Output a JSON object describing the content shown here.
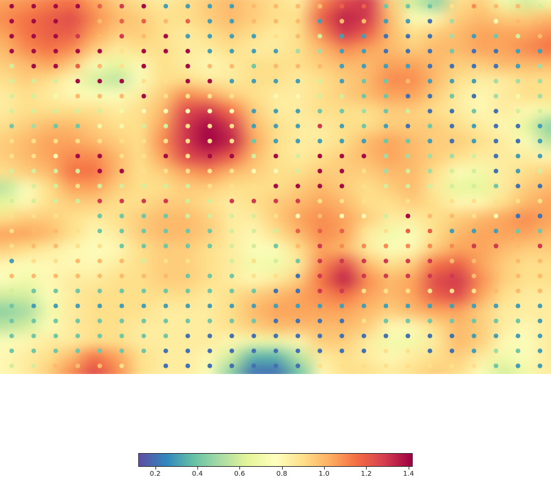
{
  "chart_data": {
    "type": "heatmap",
    "title": "",
    "xlabel": "",
    "ylabel": "",
    "colormap": "Spectral_r",
    "value_range": [
      0.12,
      1.42
    ],
    "grid": {
      "columns": 25,
      "rows": 25
    },
    "surface_value_rows": [
      [
        1.05,
        1.08,
        1.12,
        1.15,
        1.05,
        0.95,
        0.9,
        0.85,
        0.9,
        0.95,
        1.0,
        0.95,
        0.9,
        0.85,
        1.1,
        1.25,
        1.3,
        0.95,
        0.6,
        0.45,
        0.9,
        0.95,
        0.7,
        0.6,
        0.7
      ],
      [
        1.1,
        1.15,
        1.2,
        1.25,
        1.1,
        1.0,
        0.95,
        0.9,
        0.9,
        0.95,
        1.0,
        0.95,
        0.9,
        0.9,
        1.2,
        1.35,
        1.3,
        1.0,
        0.75,
        0.8,
        0.95,
        1.0,
        0.95,
        0.95,
        1.0
      ],
      [
        1.05,
        1.15,
        1.2,
        1.2,
        1.05,
        0.95,
        0.95,
        0.9,
        0.85,
        0.9,
        0.95,
        0.9,
        0.85,
        0.9,
        1.1,
        1.3,
        1.2,
        1.0,
        0.9,
        0.95,
        1.0,
        1.05,
        1.05,
        1.05,
        1.1
      ],
      [
        1.0,
        1.1,
        1.15,
        1.1,
        0.95,
        0.85,
        0.9,
        0.9,
        0.85,
        0.85,
        0.9,
        0.85,
        0.85,
        0.9,
        1.0,
        1.1,
        1.05,
        1.0,
        0.95,
        1.0,
        1.0,
        1.05,
        1.05,
        1.1,
        1.15
      ],
      [
        0.95,
        1.0,
        1.05,
        0.95,
        0.75,
        0.65,
        0.8,
        0.9,
        0.85,
        0.8,
        0.85,
        0.9,
        0.9,
        0.9,
        0.95,
        1.0,
        1.0,
        1.05,
        1.05,
        1.0,
        0.95,
        0.95,
        1.0,
        1.0,
        1.0
      ],
      [
        0.9,
        0.95,
        0.9,
        0.8,
        0.6,
        0.55,
        0.75,
        0.9,
        0.9,
        0.85,
        0.85,
        0.9,
        0.9,
        0.85,
        0.9,
        0.95,
        1.0,
        1.1,
        1.1,
        1.0,
        0.9,
        0.85,
        0.85,
        0.9,
        0.9
      ],
      [
        0.85,
        0.9,
        0.85,
        0.8,
        0.75,
        0.75,
        0.85,
        0.95,
        1.1,
        1.05,
        0.95,
        0.9,
        0.85,
        0.85,
        0.9,
        0.95,
        1.0,
        1.05,
        1.05,
        0.95,
        0.85,
        0.8,
        0.85,
        0.9,
        0.9
      ],
      [
        0.85,
        0.9,
        0.9,
        0.9,
        0.9,
        0.85,
        0.9,
        1.0,
        1.25,
        1.3,
        1.15,
        0.95,
        0.85,
        0.85,
        0.9,
        0.9,
        0.9,
        0.95,
        0.95,
        0.9,
        0.85,
        0.8,
        0.85,
        0.8,
        0.7
      ],
      [
        0.9,
        0.95,
        1.0,
        1.0,
        0.95,
        0.9,
        0.9,
        1.05,
        1.3,
        1.4,
        1.3,
        1.0,
        0.9,
        0.85,
        0.85,
        0.9,
        0.9,
        0.95,
        0.95,
        0.95,
        0.9,
        0.85,
        0.8,
        0.65,
        0.45
      ],
      [
        0.95,
        1.0,
        1.05,
        1.05,
        1.0,
        0.95,
        0.9,
        1.1,
        1.3,
        1.42,
        1.35,
        1.05,
        0.9,
        0.85,
        0.85,
        0.9,
        1.0,
        1.05,
        1.0,
        0.95,
        0.95,
        0.9,
        0.85,
        0.75,
        0.55
      ],
      [
        0.95,
        1.0,
        1.05,
        1.1,
        1.1,
        1.0,
        0.9,
        1.05,
        1.25,
        1.3,
        1.2,
        1.0,
        0.9,
        0.85,
        0.9,
        0.95,
        1.0,
        1.05,
        1.0,
        0.95,
        0.9,
        0.85,
        0.85,
        0.85,
        0.8
      ],
      [
        0.9,
        0.95,
        1.0,
        1.15,
        1.15,
        1.0,
        0.9,
        0.95,
        1.05,
        1.1,
        1.0,
        0.95,
        0.9,
        0.9,
        0.95,
        0.95,
        0.95,
        1.0,
        1.0,
        0.9,
        0.75,
        0.7,
        0.85,
        0.9,
        0.95
      ],
      [
        0.55,
        0.75,
        0.9,
        1.05,
        1.05,
        0.95,
        0.9,
        0.9,
        0.95,
        0.95,
        0.9,
        0.9,
        0.9,
        0.95,
        1.0,
        0.95,
        0.9,
        0.95,
        1.0,
        0.85,
        0.65,
        0.65,
        0.85,
        0.95,
        1.0
      ],
      [
        0.65,
        0.8,
        0.9,
        0.95,
        0.95,
        0.9,
        0.9,
        0.95,
        0.95,
        0.9,
        0.85,
        0.9,
        0.95,
        1.0,
        1.05,
        1.0,
        0.9,
        0.9,
        0.95,
        0.9,
        0.8,
        0.8,
        0.9,
        1.0,
        1.05
      ],
      [
        0.9,
        0.95,
        0.95,
        0.9,
        0.85,
        0.9,
        0.95,
        1.0,
        1.0,
        0.95,
        0.85,
        0.85,
        0.95,
        1.05,
        1.1,
        1.05,
        0.95,
        0.85,
        0.85,
        0.9,
        0.95,
        1.0,
        1.05,
        1.1,
        1.05
      ],
      [
        1.05,
        1.05,
        1.0,
        0.9,
        0.8,
        0.85,
        0.95,
        1.0,
        1.0,
        0.95,
        0.85,
        0.8,
        0.9,
        1.0,
        1.1,
        1.05,
        0.85,
        0.7,
        0.75,
        0.9,
        1.0,
        1.05,
        1.05,
        1.05,
        1.0
      ],
      [
        0.95,
        0.9,
        0.85,
        0.8,
        0.75,
        0.8,
        0.9,
        0.95,
        0.95,
        0.9,
        0.85,
        0.75,
        0.75,
        0.9,
        1.05,
        1.0,
        0.85,
        0.75,
        0.8,
        0.95,
        1.05,
        1.05,
        1.0,
        0.95,
        0.95
      ],
      [
        0.8,
        0.75,
        0.8,
        0.8,
        0.8,
        0.85,
        0.9,
        0.95,
        0.95,
        0.9,
        0.85,
        0.7,
        0.7,
        0.85,
        1.1,
        1.25,
        1.0,
        0.9,
        0.95,
        1.15,
        1.2,
        1.05,
        0.95,
        0.9,
        0.9
      ],
      [
        0.75,
        0.7,
        0.8,
        0.85,
        0.85,
        0.9,
        0.9,
        0.95,
        0.95,
        0.9,
        0.85,
        0.8,
        0.85,
        0.95,
        1.15,
        1.35,
        1.1,
        1.0,
        1.05,
        1.25,
        1.3,
        1.1,
        0.95,
        0.9,
        0.9
      ],
      [
        0.6,
        0.6,
        0.75,
        0.85,
        0.9,
        0.9,
        0.9,
        0.9,
        0.9,
        0.85,
        0.9,
        0.95,
        1.0,
        1.05,
        1.1,
        1.15,
        1.05,
        1.0,
        1.05,
        1.2,
        1.25,
        1.05,
        0.9,
        0.85,
        0.85
      ],
      [
        0.45,
        0.5,
        0.7,
        0.85,
        0.9,
        0.9,
        0.9,
        0.85,
        0.85,
        0.85,
        0.9,
        1.0,
        1.05,
        1.05,
        1.05,
        1.05,
        1.0,
        0.95,
        1.0,
        1.05,
        1.05,
        0.95,
        0.85,
        0.85,
        0.85
      ],
      [
        0.55,
        0.6,
        0.75,
        0.85,
        0.9,
        0.9,
        0.85,
        0.85,
        0.85,
        0.85,
        0.9,
        0.95,
        1.0,
        1.0,
        1.0,
        1.0,
        0.95,
        0.8,
        0.8,
        0.9,
        1.0,
        0.95,
        0.85,
        0.8,
        0.85
      ],
      [
        0.75,
        0.8,
        0.85,
        0.85,
        0.9,
        0.9,
        0.85,
        0.85,
        0.85,
        0.85,
        0.8,
        0.7,
        0.7,
        0.8,
        0.95,
        0.95,
        0.85,
        0.7,
        0.7,
        0.85,
        1.0,
        0.95,
        0.8,
        0.75,
        0.85
      ],
      [
        0.8,
        0.85,
        0.9,
        1.0,
        1.15,
        1.05,
        0.9,
        0.85,
        0.85,
        0.8,
        0.6,
        0.35,
        0.35,
        0.55,
        0.85,
        0.9,
        0.85,
        0.8,
        0.85,
        0.9,
        0.95,
        0.85,
        0.7,
        0.75,
        0.85
      ],
      [
        0.8,
        0.85,
        0.95,
        1.1,
        1.25,
        1.1,
        0.9,
        0.85,
        0.85,
        0.75,
        0.45,
        0.2,
        0.2,
        0.4,
        0.8,
        0.9,
        0.9,
        0.85,
        0.9,
        0.95,
        0.9,
        0.75,
        0.6,
        0.7,
        0.85
      ]
    ],
    "point_value_rows": [
      [
        1.4,
        1.4,
        1.4,
        1.4,
        1.2,
        1.3,
        1.4,
        0.3,
        0.3,
        0.3,
        0.3,
        1.0,
        1.0,
        1.0,
        1.0,
        1.2,
        1.2,
        0.4,
        0.4,
        0.4,
        0.9,
        1.1,
        1.0,
        1.0,
        0.6
      ],
      [
        1.4,
        1.4,
        1.4,
        1.2,
        1.0,
        1.2,
        1.2,
        1.0,
        1.2,
        0.3,
        0.3,
        1.0,
        1.0,
        1.0,
        0.3,
        1.0,
        1.0,
        0.3,
        0.3,
        0.2,
        0.5,
        1.0,
        0.8,
        1.0,
        1.0
      ],
      [
        1.4,
        1.4,
        1.4,
        1.3,
        1.0,
        1.3,
        1.0,
        1.4,
        0.3,
        0.3,
        0.3,
        0.3,
        0.9,
        1.0,
        0.6,
        0.3,
        0.3,
        0.2,
        0.2,
        0.2,
        0.5,
        0.3,
        0.4,
        0.6,
        1.0
      ],
      [
        1.4,
        1.4,
        1.4,
        1.4,
        1.4,
        0.9,
        1.4,
        1.4,
        1.4,
        0.3,
        0.3,
        0.3,
        0.3,
        0.5,
        0.5,
        0.3,
        0.3,
        0.2,
        0.2,
        0.2,
        0.4,
        0.2,
        0.2,
        0.3,
        0.3
      ],
      [
        0.6,
        1.4,
        1.4,
        1.2,
        1.0,
        0.9,
        1.4,
        0.9,
        1.4,
        1.0,
        1.0,
        0.4,
        1.0,
        1.0,
        1.0,
        0.3,
        0.3,
        0.3,
        0.3,
        0.2,
        0.2,
        0.2,
        0.2,
        0.3,
        0.5
      ],
      [
        0.6,
        0.6,
        0.6,
        1.4,
        1.4,
        1.4,
        0.9,
        0.9,
        1.4,
        1.4,
        0.3,
        0.3,
        0.3,
        0.3,
        0.6,
        0.3,
        0.4,
        0.4,
        1.0,
        0.3,
        0.3,
        0.3,
        0.5,
        0.5,
        0.5
      ],
      [
        0.6,
        0.6,
        0.7,
        1.0,
        1.0,
        1.0,
        1.4,
        0.9,
        0.9,
        0.9,
        0.9,
        0.9,
        0.8,
        0.8,
        0.6,
        0.6,
        0.4,
        0.4,
        0.2,
        0.2,
        0.4,
        0.2,
        0.5,
        0.7,
        0.5
      ],
      [
        0.6,
        0.6,
        0.6,
        0.6,
        0.6,
        0.7,
        0.8,
        0.8,
        0.8,
        0.8,
        0.8,
        0.3,
        0.3,
        0.3,
        0.4,
        0.4,
        0.5,
        0.4,
        0.6,
        0.2,
        0.2,
        0.4,
        0.2,
        0.6,
        0.6
      ],
      [
        0.4,
        0.5,
        0.4,
        0.4,
        0.7,
        0.7,
        0.6,
        0.6,
        0.9,
        0.9,
        0.9,
        0.3,
        0.3,
        0.3,
        1.3,
        0.3,
        0.4,
        0.3,
        0.2,
        0.4,
        0.2,
        0.3,
        0.2,
        0.2,
        0.3
      ],
      [
        0.9,
        0.9,
        0.9,
        0.9,
        0.9,
        0.9,
        0.9,
        0.9,
        0.9,
        0.9,
        0.9,
        0.4,
        0.3,
        0.3,
        0.3,
        0.3,
        0.3,
        0.4,
        0.4,
        0.3,
        0.2,
        0.3,
        0.2,
        0.2,
        0.3
      ],
      [
        0.9,
        0.9,
        0.8,
        1.4,
        1.4,
        0.9,
        0.9,
        1.4,
        0.9,
        1.4,
        1.4,
        0.6,
        1.4,
        0.6,
        1.4,
        1.4,
        1.4,
        0.5,
        0.5,
        0.5,
        0.5,
        0.6,
        0.2,
        0.3,
        0.3
      ],
      [
        0.6,
        0.6,
        0.6,
        0.6,
        1.4,
        1.4,
        0.9,
        0.9,
        0.9,
        0.9,
        0.9,
        0.8,
        0.8,
        0.6,
        1.4,
        1.4,
        0.9,
        0.5,
        0.6,
        0.5,
        0.6,
        0.6,
        0.2,
        0.3,
        0.6
      ],
      [
        0.6,
        0.6,
        0.6,
        0.9,
        0.6,
        0.6,
        0.6,
        0.6,
        0.6,
        0.9,
        0.9,
        0.9,
        1.4,
        1.4,
        1.4,
        1.4,
        0.9,
        0.6,
        0.6,
        0.6,
        0.6,
        0.6,
        0.4,
        0.2,
        0.2
      ],
      [
        0.6,
        0.6,
        0.6,
        0.6,
        1.3,
        1.3,
        1.3,
        1.3,
        0.6,
        0.6,
        1.3,
        1.3,
        1.3,
        1.3,
        0.9,
        0.9,
        0.9,
        0.9,
        0.9,
        0.9,
        0.9,
        0.9,
        0.9,
        0.9,
        0.9
      ],
      [
        0.9,
        0.9,
        0.9,
        0.9,
        0.4,
        0.4,
        0.4,
        0.4,
        0.6,
        0.6,
        0.6,
        0.6,
        0.9,
        0.8,
        1.0,
        0.8,
        0.8,
        0.6,
        1.4,
        1.0,
        1.0,
        0.9,
        0.8,
        0.2,
        0.2
      ],
      [
        0.9,
        1.0,
        1.0,
        0.9,
        0.4,
        0.4,
        0.4,
        0.4,
        0.4,
        0.4,
        0.6,
        0.6,
        0.6,
        1.2,
        1.2,
        1.2,
        0.9,
        0.9,
        1.2,
        1.2,
        0.3,
        0.3,
        0.3,
        0.4,
        0.4
      ],
      [
        0.9,
        1.0,
        1.0,
        0.9,
        0.9,
        0.4,
        0.4,
        0.4,
        0.4,
        0.4,
        0.6,
        0.6,
        0.4,
        1.0,
        1.3,
        1.1,
        1.1,
        1.1,
        1.1,
        1.1,
        1.1,
        1.3,
        1.3,
        1.0,
        1.3
      ],
      [
        0.3,
        0.9,
        0.9,
        1.0,
        1.0,
        1.0,
        0.6,
        0.9,
        0.9,
        0.9,
        0.6,
        0.9,
        0.6,
        0.4,
        1.3,
        1.3,
        1.3,
        1.3,
        1.3,
        1.3,
        1.0,
        1.0,
        1.0,
        1.0,
        1.0
      ],
      [
        1.0,
        1.0,
        1.0,
        1.0,
        1.0,
        1.0,
        1.0,
        1.0,
        0.4,
        0.4,
        0.4,
        0.9,
        0.9,
        0.2,
        1.3,
        1.3,
        1.3,
        1.3,
        1.3,
        1.3,
        1.3,
        1.0,
        1.0,
        1.0,
        1.0
      ],
      [
        0.6,
        0.4,
        0.4,
        0.4,
        0.4,
        0.4,
        0.4,
        0.4,
        0.4,
        0.4,
        0.4,
        0.4,
        0.2,
        0.2,
        1.3,
        1.3,
        0.9,
        0.9,
        0.9,
        0.9,
        0.9,
        0.9,
        1.0,
        1.0,
        1.0
      ],
      [
        0.4,
        0.3,
        0.3,
        0.3,
        0.3,
        0.3,
        0.3,
        0.3,
        0.3,
        0.3,
        0.3,
        0.3,
        0.3,
        0.3,
        0.3,
        0.3,
        0.3,
        0.3,
        0.3,
        0.3,
        0.3,
        0.3,
        0.3,
        0.3,
        0.3
      ],
      [
        0.4,
        0.4,
        0.4,
        0.4,
        0.4,
        0.4,
        0.4,
        0.4,
        0.4,
        0.4,
        0.4,
        0.4,
        0.2,
        0.2,
        0.2,
        0.2,
        0.9,
        0.4,
        0.4,
        0.4,
        0.4,
        0.4,
        0.4,
        0.4,
        0.3
      ],
      [
        0.4,
        0.4,
        0.4,
        0.4,
        0.4,
        0.4,
        0.4,
        0.4,
        0.2,
        0.2,
        0.2,
        0.2,
        0.2,
        0.2,
        0.2,
        0.2,
        0.2,
        0.2,
        0.2,
        0.2,
        0.2,
        0.3,
        0.3,
        0.3,
        0.3
      ],
      [
        0.4,
        0.4,
        0.4,
        0.4,
        0.4,
        0.4,
        0.4,
        0.2,
        0.2,
        0.2,
        0.2,
        0.2,
        0.2,
        0.2,
        0.2,
        0.2,
        0.2,
        0.9,
        0.9,
        0.2,
        0.2,
        0.3,
        0.5,
        0.4,
        0.3
      ],
      [
        0.6,
        0.6,
        1.0,
        1.0,
        1.0,
        0.9,
        0.9,
        0.2,
        0.2,
        0.2,
        0.2,
        0.2,
        0.2,
        0.2,
        0.9,
        0.9,
        0.9,
        0.9,
        0.9,
        0.9,
        0.9,
        0.9,
        0.4,
        0.3,
        0.3
      ]
    ],
    "colorbar": {
      "ticks": [
        "0.2",
        "0.4",
        "0.6",
        "0.8",
        "1.0",
        "1.2",
        "1.4"
      ],
      "tick_values": [
        0.2,
        0.4,
        0.6,
        0.8,
        1.0,
        1.2,
        1.4
      ]
    },
    "grid_lines": false,
    "legend": "colorbar-bottom"
  }
}
